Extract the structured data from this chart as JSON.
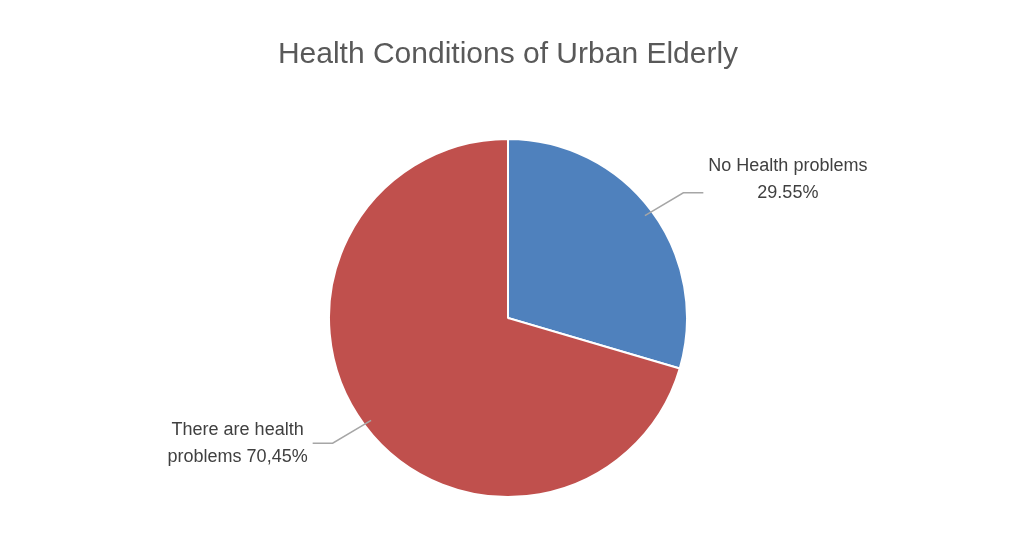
{
  "chart_data": {
    "type": "pie",
    "title": "Health Conditions of Urban Elderly",
    "categories": [
      "No Health problems",
      "There are health problems"
    ],
    "values": [
      29.55,
      70.45
    ],
    "value_labels": [
      "29.55%",
      "70,45%"
    ],
    "colors": [
      "#4f81bd",
      "#c0504d"
    ],
    "legend": false
  }
}
